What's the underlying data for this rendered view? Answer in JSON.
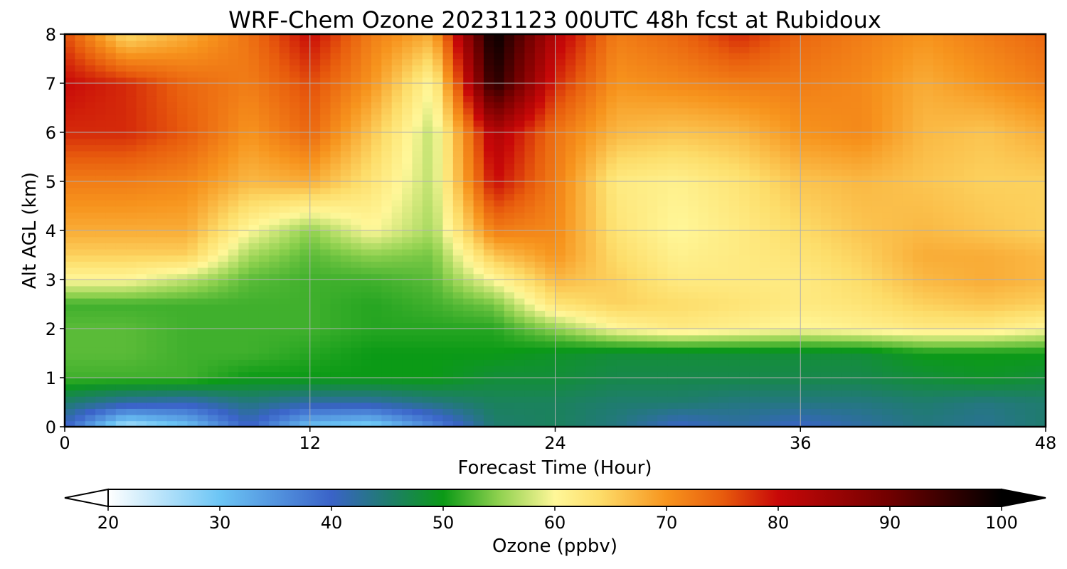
{
  "chart_data": {
    "type": "heatmap",
    "title": "WRF-Chem Ozone  20231123 00UTC 48h fcst at Rubidoux",
    "xlabel": "Forecast Time (Hour)",
    "ylabel": "Alt AGL (km)",
    "xlim": [
      0,
      48
    ],
    "ylim": [
      0,
      8
    ],
    "x_ticks": [
      0,
      12,
      24,
      36,
      48
    ],
    "y_ticks": [
      0,
      1,
      2,
      3,
      4,
      5,
      6,
      7,
      8
    ],
    "grid": true,
    "colorbar": {
      "label": "Ozone  (ppbv)",
      "min": 20,
      "max": 100,
      "ticks": [
        20,
        30,
        40,
        50,
        60,
        70,
        80,
        90,
        100
      ],
      "extend": "both",
      "stops": [
        {
          "v": 20,
          "c": "#ffffff"
        },
        {
          "v": 30,
          "c": "#6cc5f5"
        },
        {
          "v": 40,
          "c": "#3a63c8"
        },
        {
          "v": 45,
          "c": "#1f7c6e"
        },
        {
          "v": 50,
          "c": "#0b9a16"
        },
        {
          "v": 55,
          "c": "#8fd14f"
        },
        {
          "v": 60,
          "c": "#fff799"
        },
        {
          "v": 64,
          "c": "#fddd6a"
        },
        {
          "v": 70,
          "c": "#f7941d"
        },
        {
          "v": 75,
          "c": "#e85c0d"
        },
        {
          "v": 80,
          "c": "#c80808"
        },
        {
          "v": 90,
          "c": "#700000"
        },
        {
          "v": 100,
          "c": "#000000"
        }
      ],
      "over_color": "#000000",
      "under_color": "#ffffff"
    },
    "hours": [
      0,
      3,
      6,
      9,
      12,
      15,
      18,
      21,
      24,
      27,
      30,
      33,
      36,
      39,
      42,
      45,
      48
    ],
    "altitudes_km": [
      0,
      0.5,
      1,
      1.5,
      2,
      2.5,
      3,
      3.5,
      4,
      5,
      6,
      7,
      8
    ],
    "ozone_ppbv": [
      [
        40,
        25,
        30,
        40,
        30,
        28,
        36,
        45,
        46,
        44,
        40,
        42,
        40,
        42,
        44,
        43,
        45
      ],
      [
        45,
        42,
        41,
        44,
        42,
        42,
        44,
        46,
        46,
        45,
        45,
        44,
        44,
        44,
        45,
        44,
        45
      ],
      [
        52,
        52,
        52,
        50,
        50,
        50,
        50,
        48,
        48,
        47,
        47,
        47,
        47,
        47,
        48,
        49,
        48
      ],
      [
        53,
        53,
        52,
        52,
        51,
        50,
        50,
        50,
        49,
        48,
        48,
        48,
        48,
        48,
        50,
        50,
        50
      ],
      [
        53,
        53,
        52,
        52,
        52,
        51,
        51,
        51,
        55,
        60,
        62,
        61,
        60,
        61,
        62,
        62,
        60
      ],
      [
        52,
        52,
        52,
        52,
        52,
        51,
        52,
        54,
        63,
        65,
        64,
        63,
        62,
        63,
        65,
        66,
        65
      ],
      [
        60,
        60,
        57,
        53,
        52,
        52,
        53,
        60,
        67,
        65,
        62,
        62,
        62,
        64,
        67,
        68,
        67
      ],
      [
        65,
        65,
        65,
        56,
        53,
        55,
        54,
        66,
        70,
        64,
        61,
        62,
        63,
        65,
        68,
        68,
        67
      ],
      [
        68,
        68,
        68,
        60,
        55,
        60,
        56,
        72,
        71,
        63,
        60,
        62,
        64,
        66,
        67,
        66,
        65
      ],
      [
        72,
        72,
        71,
        67,
        68,
        63,
        57,
        80,
        72,
        62,
        61,
        63,
        66,
        67,
        66,
        65,
        65
      ],
      [
        78,
        78,
        75,
        70,
        74,
        66,
        57,
        83,
        73,
        67,
        66,
        67,
        70,
        71,
        67,
        66,
        68
      ],
      [
        80,
        78,
        74,
        72,
        76,
        70,
        60,
        97,
        78,
        70,
        71,
        72,
        72,
        71,
        68,
        70,
        72
      ],
      [
        76,
        64,
        68,
        73,
        80,
        72,
        68,
        100,
        82,
        72,
        74,
        78,
        74,
        72,
        70,
        72,
        74
      ]
    ]
  }
}
